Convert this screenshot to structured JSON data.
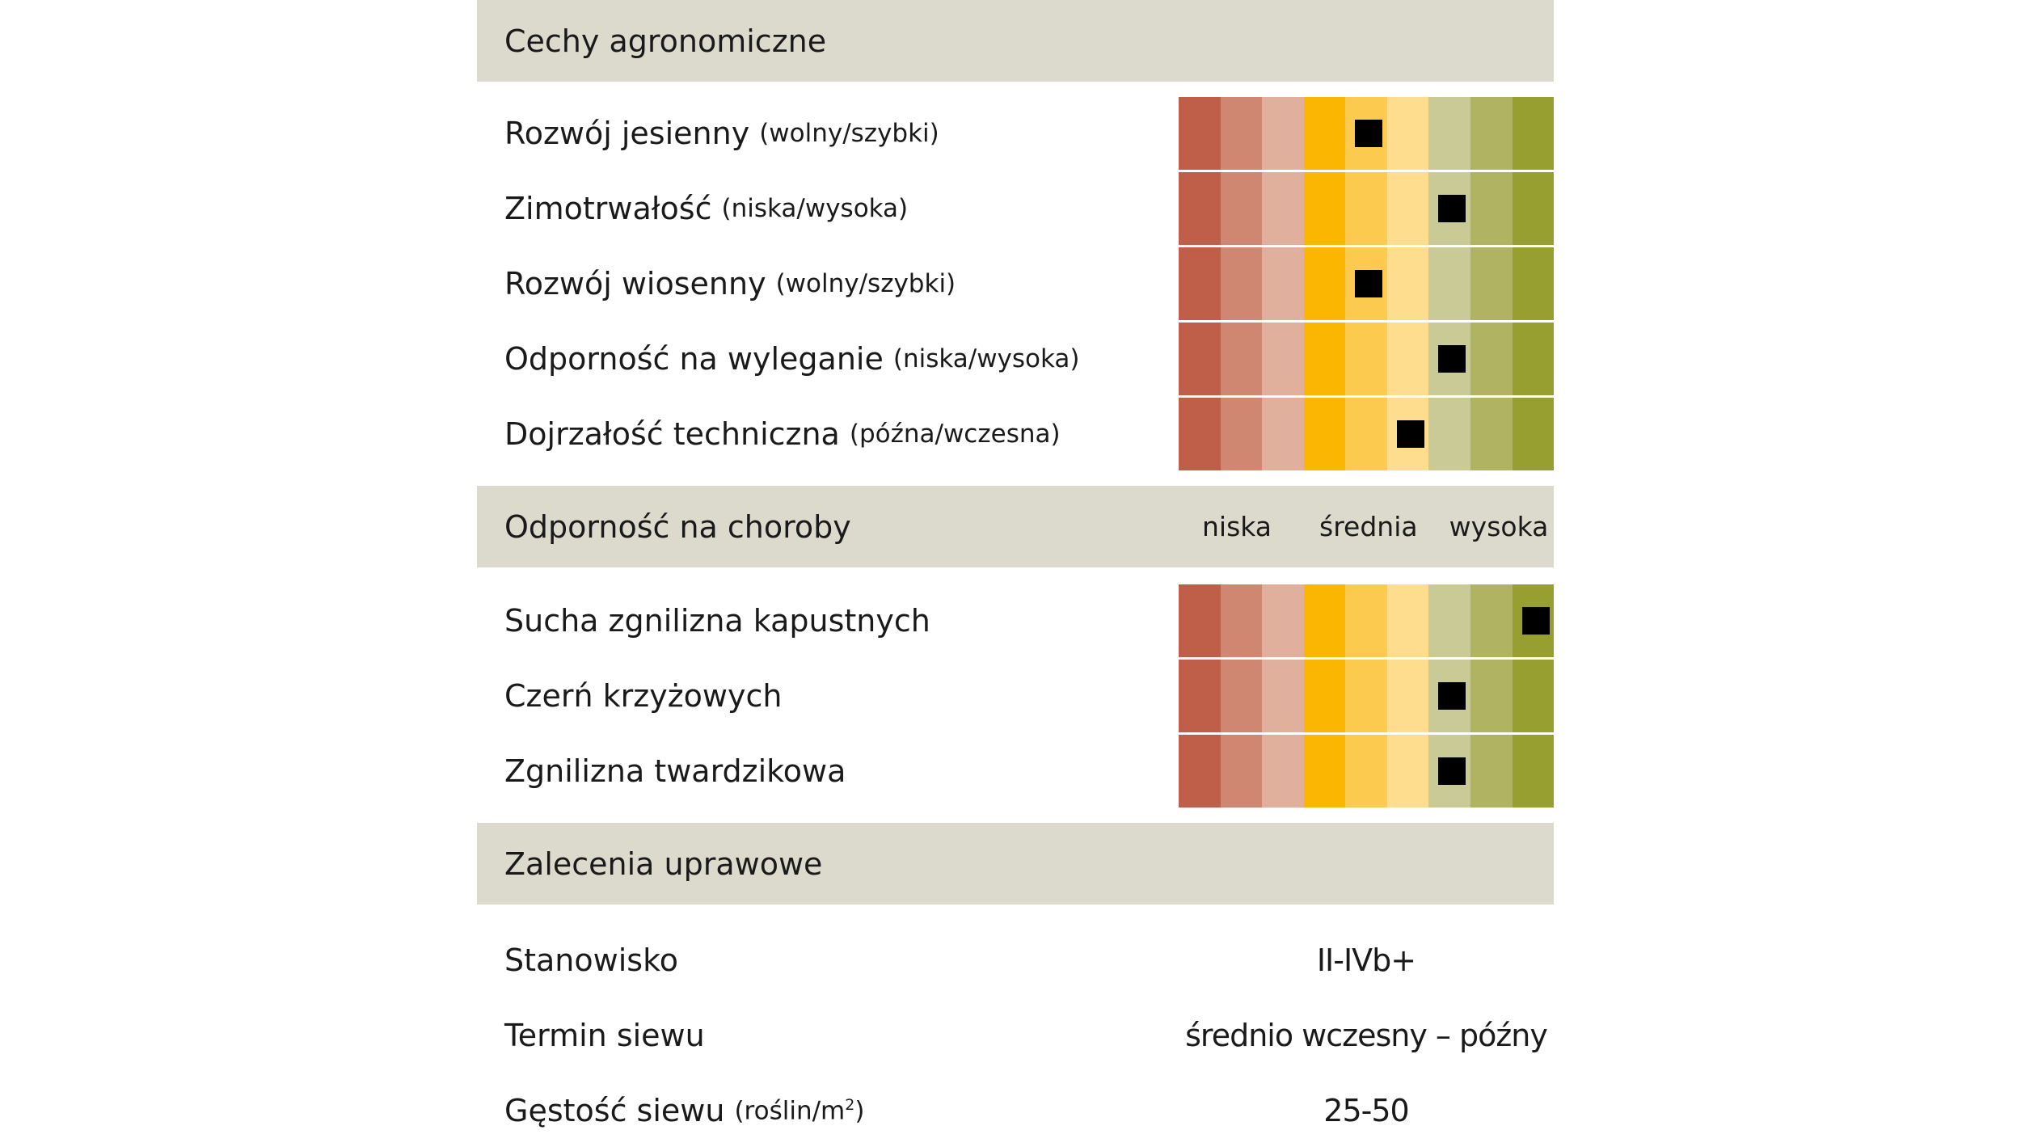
{
  "palette": [
    "#bf5f4a",
    "#cf8772",
    "#e0b09c",
    "#fab600",
    "#fdca50",
    "#fedd8f",
    "#c9ca95",
    "#b0b462",
    "#979f31"
  ],
  "sections": {
    "agronomic": {
      "title": "Cechy agronomiczne"
    },
    "disease": {
      "title": "Odporność na choroby",
      "scale_labels": [
        "niska",
        "średnia",
        "wysoka"
      ]
    },
    "recommendations": {
      "title": "Zalecenia uprawowe"
    }
  },
  "agronomic_rows": [
    {
      "label": "Rozwój jesienny",
      "hint": "(wolny/szybki)",
      "score": 5
    },
    {
      "label": "Zimotrwałość",
      "hint": "(niska/wysoka)",
      "score": 7
    },
    {
      "label": "Rozwój wiosenny",
      "hint": "(wolny/szybki)",
      "score": 5
    },
    {
      "label": "Odporność na wyleganie",
      "hint": "(niska/wysoka)",
      "score": 7
    },
    {
      "label": "Dojrzałość techniczna",
      "hint": "(późna/wczesna)",
      "score": 6
    }
  ],
  "disease_rows": [
    {
      "label": "Sucha zgnilizna kapustnych",
      "score": 9
    },
    {
      "label": "Czerń krzyżowych",
      "score": 7
    },
    {
      "label": "Zgnilizna twardzikowa",
      "score": 7
    }
  ],
  "recommendation_rows": [
    {
      "label": "Stanowisko",
      "hint": "",
      "hint_sup": "",
      "value": "II-IVb+"
    },
    {
      "label": "Termin siewu",
      "hint": "",
      "hint_sup": "",
      "value": "średnio wczesny – późny"
    },
    {
      "label": "Gęstość siewu",
      "hint": "(roślin/m",
      "hint_sup": "2",
      "hint_close": ")",
      "value": "25-50"
    }
  ]
}
